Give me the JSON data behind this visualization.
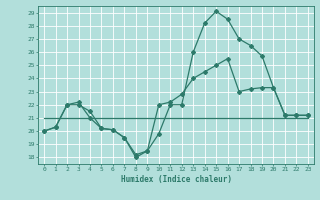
{
  "title": "",
  "xlabel": "Humidex (Indice chaleur)",
  "background_color": "#b2dfdb",
  "grid_color": "#ffffff",
  "line_color": "#2d7a6a",
  "xlim": [
    -0.5,
    23.5
  ],
  "ylim": [
    17.5,
    29.5
  ],
  "yticks": [
    18,
    19,
    20,
    21,
    22,
    23,
    24,
    25,
    26,
    27,
    28,
    29
  ],
  "xticks": [
    0,
    1,
    2,
    3,
    4,
    5,
    6,
    7,
    8,
    9,
    10,
    11,
    12,
    13,
    14,
    15,
    16,
    17,
    18,
    19,
    20,
    21,
    22,
    23
  ],
  "series1_x": [
    0,
    1,
    2,
    3,
    4,
    5,
    6,
    7,
    8,
    9,
    10,
    11,
    12,
    13,
    14,
    15,
    16,
    17,
    18,
    19,
    20,
    21,
    22,
    23
  ],
  "series1_y": [
    20,
    20.3,
    22,
    22,
    21.5,
    20.2,
    20.1,
    19.5,
    18,
    18.5,
    19.8,
    22,
    22,
    26,
    28.2,
    29.1,
    28.5,
    27,
    26.5,
    25.7,
    23.3,
    21.2,
    21.2,
    21.2
  ],
  "series2_x": [
    0,
    23
  ],
  "series2_y": [
    21,
    21
  ],
  "series3_x": [
    0,
    1,
    2,
    3,
    4,
    5,
    6,
    7,
    8,
    9,
    10,
    11,
    12,
    13,
    14,
    15,
    16,
    17,
    18,
    19,
    20,
    21,
    22,
    23
  ],
  "series3_y": [
    20,
    20.3,
    22,
    22.2,
    21,
    20.2,
    20.1,
    19.5,
    18.2,
    18.5,
    22,
    22.2,
    22.8,
    24,
    24.5,
    25,
    25.5,
    23,
    23.2,
    23.3,
    23.3,
    21.2,
    21.2,
    21.2
  ]
}
